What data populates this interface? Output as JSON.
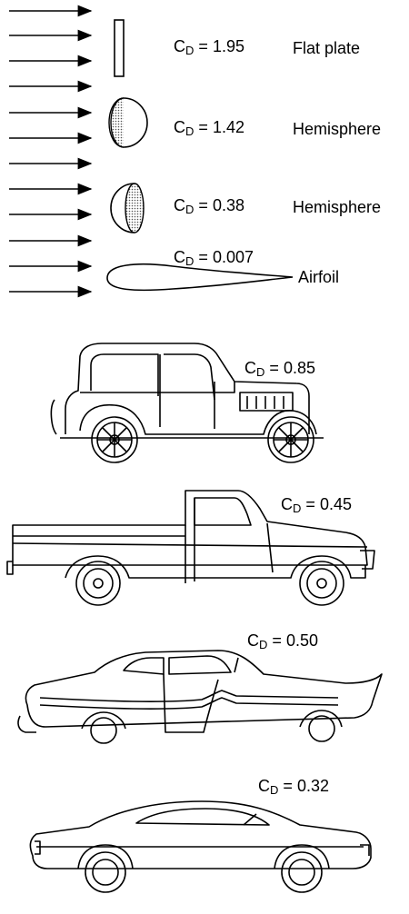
{
  "coefficient_symbol": "C",
  "coefficient_subscript": "D",
  "equals": "=",
  "flow_shapes": [
    {
      "cd": "1.95",
      "name": "Flat plate"
    },
    {
      "cd": "1.42",
      "name": "Hemisphere"
    },
    {
      "cd": "0.38",
      "name": "Hemisphere"
    },
    {
      "cd": "0.007",
      "name": "Airfoil"
    }
  ],
  "vehicles": [
    {
      "cd": "0.85",
      "icon": "vintage-sedan-icon"
    },
    {
      "cd": "0.45",
      "icon": "pickup-truck-icon"
    },
    {
      "cd": "0.50",
      "icon": "1950s-sedan-icon"
    },
    {
      "cd": "0.32",
      "icon": "modern-coupe-icon"
    }
  ],
  "colors": {
    "ink": "#000000",
    "shade": "#9a9a9a",
    "background": "#ffffff"
  }
}
